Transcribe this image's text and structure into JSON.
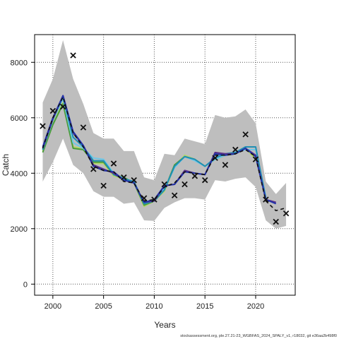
{
  "chart_data": {
    "type": "line",
    "title": "",
    "xlabel": "Years",
    "ylabel": "Catch",
    "xlim": [
      1998.2,
      2023.9
    ],
    "ylim": [
      -400,
      9000
    ],
    "x_ticks": [
      2000,
      2005,
      2010,
      2015,
      2020
    ],
    "y_ticks": [
      0,
      2000,
      4000,
      6000,
      8000
    ],
    "x_tick_labels": [
      "2000",
      "2005",
      "2010",
      "2015",
      "2020"
    ],
    "y_tick_labels": [
      "0",
      "2000",
      "4000",
      "6000",
      "8000"
    ],
    "grid": true,
    "grid_style": "dotted",
    "legend": "none",
    "footer": "stockassessment.org, ple.27.21-23_WGBFAS_2024_SPALY_v1, r18032, git e36aa2b498f0",
    "band": {
      "color": "#bebebe",
      "x": [
        1999,
        2000,
        2001,
        2002,
        2003,
        2004,
        2005,
        2006,
        2007,
        2008,
        2009,
        2010,
        2011,
        2012,
        2013,
        2014,
        2015,
        2016,
        2017,
        2018,
        2019,
        2020,
        2021,
        2022,
        2023
      ],
      "upper": [
        6550,
        7400,
        8800,
        7400,
        6500,
        5450,
        5250,
        5250,
        4800,
        4800,
        3850,
        3750,
        4700,
        4650,
        5250,
        5150,
        5050,
        6100,
        6000,
        6050,
        6300,
        5800,
        3700,
        3250,
        3650
      ],
      "lower": [
        3700,
        4400,
        5250,
        4300,
        4000,
        3350,
        3150,
        3150,
        2900,
        2950,
        2300,
        2280,
        2750,
        2950,
        3100,
        3100,
        3050,
        3750,
        3700,
        3800,
        3850,
        3500,
        2300,
        2000,
        2100
      ]
    },
    "observed": {
      "marker": "x",
      "color": "#111111",
      "x": [
        1999,
        2000,
        2001,
        2002,
        2003,
        2004,
        2005,
        2006,
        2007,
        2008,
        2009,
        2010,
        2011,
        2012,
        2013,
        2014,
        2015,
        2016,
        2017,
        2018,
        2019,
        2020,
        2021,
        2022,
        2023
      ],
      "y": [
        5700,
        6250,
        6400,
        8250,
        5650,
        4150,
        3550,
        4350,
        3850,
        3750,
        3100,
        3050,
        3600,
        3200,
        3600,
        3900,
        3750,
        4550,
        4300,
        4850,
        5400,
        4500,
        3050,
        2250,
        2550
      ]
    },
    "series": [
      {
        "color": "#b5d56b",
        "dash": "solid",
        "width": 2,
        "x": [
          1999,
          2000,
          2001,
          2002,
          2003,
          2004,
          2005,
          2006,
          2007,
          2008,
          2009,
          2010,
          2011,
          2012,
          2013,
          2014,
          2015,
          2016,
          2017,
          2018,
          2019,
          2020
        ],
        "y": [
          4800,
          5800,
          6550,
          4950,
          4900,
          4350,
          4350,
          3900,
          3800,
          3650,
          2800,
          3000,
          3350,
          4250,
          4650,
          4500,
          4250,
          4500,
          4650,
          4700,
          4900,
          4500
        ]
      },
      {
        "color": "#4a9b3a",
        "dash": "solid",
        "width": 2,
        "x": [
          1999,
          2000,
          2001,
          2002,
          2003,
          2004,
          2005,
          2006,
          2007,
          2008,
          2009,
          2010,
          2011,
          2012,
          2013,
          2014,
          2015,
          2016,
          2017,
          2018,
          2019
        ],
        "y": [
          4750,
          5750,
          6500,
          4900,
          4850,
          4400,
          4400,
          3950,
          3850,
          3650,
          2850,
          3000,
          3400,
          4300,
          4600,
          4500,
          4250,
          4500,
          4650,
          4700,
          4950
        ]
      },
      {
        "color": "#6fc8e8",
        "dash": "solid",
        "width": 2,
        "x": [
          1999,
          2000,
          2001,
          2002,
          2003,
          2004,
          2005,
          2006,
          2007,
          2008,
          2009,
          2010,
          2011,
          2012,
          2013,
          2014,
          2015,
          2016,
          2017,
          2018,
          2019,
          2020,
          2021
        ],
        "y": [
          4850,
          5900,
          6700,
          5100,
          4900,
          4550,
          4500,
          4000,
          3800,
          3700,
          2900,
          3000,
          3450,
          4200,
          4600,
          4450,
          4250,
          4500,
          4650,
          4750,
          4850,
          4850,
          3150
        ]
      },
      {
        "color": "#1f8fb4",
        "dash": "solid",
        "width": 2,
        "x": [
          1999,
          2000,
          2001,
          2002,
          2003,
          2004,
          2005,
          2006,
          2007,
          2008,
          2009,
          2010,
          2011,
          2012,
          2013,
          2014,
          2015,
          2016,
          2017,
          2018,
          2019,
          2020,
          2021
        ],
        "y": [
          4850,
          5950,
          6750,
          5300,
          4950,
          4450,
          4450,
          3950,
          3800,
          3700,
          2900,
          3000,
          3400,
          4250,
          4600,
          4500,
          4250,
          4550,
          4700,
          4750,
          4950,
          4950,
          3100
        ]
      },
      {
        "color": "#5a2f86",
        "dash": "solid",
        "width": 2,
        "x": [
          1999,
          2000,
          2001,
          2002,
          2003,
          2004,
          2005,
          2006,
          2007,
          2008,
          2009,
          2010,
          2011,
          2012,
          2013,
          2014,
          2015,
          2016,
          2017,
          2018,
          2019,
          2020,
          2021,
          2022
        ],
        "y": [
          4900,
          5950,
          6800,
          5450,
          5000,
          4300,
          4150,
          4000,
          3750,
          3650,
          2950,
          3000,
          3550,
          3600,
          4100,
          4000,
          3950,
          4750,
          4700,
          4700,
          4900,
          4650,
          3050,
          2950
        ]
      },
      {
        "color": "#2233aa",
        "dash": "solid",
        "width": 2,
        "x": [
          1999,
          2000,
          2001,
          2002,
          2003,
          2004,
          2005,
          2006,
          2007,
          2008,
          2009,
          2010,
          2011,
          2012,
          2013,
          2014,
          2015,
          2016,
          2017,
          2018,
          2019,
          2020,
          2021,
          2022
        ],
        "y": [
          4950,
          6000,
          6800,
          5500,
          5000,
          4250,
          4100,
          4050,
          3750,
          3650,
          2950,
          3050,
          3550,
          3600,
          4050,
          4000,
          3950,
          4700,
          4650,
          4700,
          4900,
          4600,
          3050,
          2900
        ]
      },
      {
        "color": "#111111",
        "dash": "5,4",
        "width": 1.6,
        "x": [
          1999,
          2000,
          2001,
          2002,
          2003,
          2004,
          2005,
          2006,
          2007,
          2008,
          2009,
          2010,
          2011,
          2012,
          2013,
          2014,
          2015,
          2016,
          2017,
          2018,
          2019,
          2020,
          2021,
          2022,
          2023
        ],
        "y": [
          4900,
          6000,
          6750,
          5450,
          4950,
          4250,
          4100,
          4050,
          3700,
          3650,
          3000,
          3050,
          3500,
          3650,
          4050,
          4000,
          3950,
          4650,
          4650,
          4700,
          4850,
          4600,
          3000,
          2650,
          2750
        ]
      }
    ]
  }
}
